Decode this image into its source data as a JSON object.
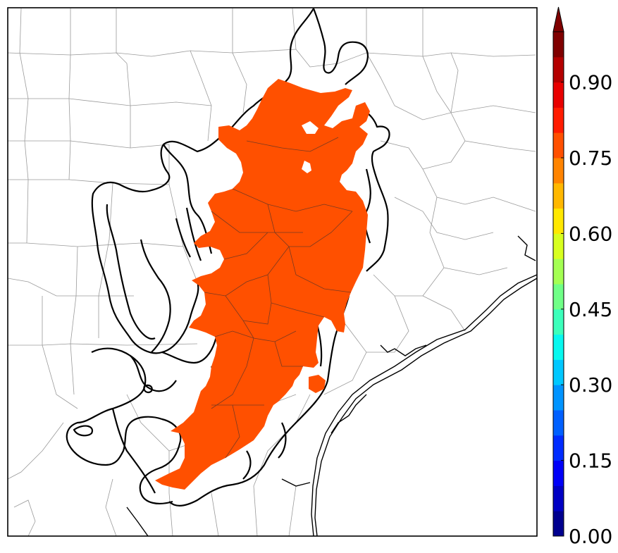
{
  "colorbar": {
    "colors": [
      "#00008f",
      "#0000c4",
      "#0000f8",
      "#002cff",
      "#0060ff",
      "#0094ff",
      "#00c8ff",
      "#08f8ef",
      "#3cffbb",
      "#70ff87",
      "#a4ff53",
      "#d8ff1f",
      "#ffe800",
      "#ffb800",
      "#ff8400",
      "#ff5000",
      "#ff1c00",
      "#e80000",
      "#b40000",
      "#800000"
    ],
    "extend_color": "#800000",
    "ticks": [
      "0.00",
      "0.15",
      "0.30",
      "0.45",
      "0.60",
      "0.75",
      "0.90"
    ],
    "tick_values": [
      0.0,
      0.15,
      0.3,
      0.45,
      0.6,
      0.75,
      0.9
    ],
    "range": [
      0.0,
      1.0
    ]
  },
  "plume": {
    "color": "#ff5000",
    "value_level": 0.85
  },
  "map": {
    "background": "#ffffff",
    "county_line_color": "#9a9a9a",
    "coast_color": "#000000",
    "contour_color": "#000000"
  }
}
